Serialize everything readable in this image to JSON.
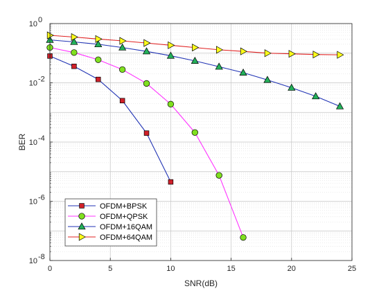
{
  "chart_data": {
    "type": "line",
    "title": "",
    "xlabel": "SNR(dB)",
    "ylabel": "BER",
    "xlim": [
      0,
      25
    ],
    "ylim": [
      1e-08,
      1
    ],
    "yscale": "log",
    "grid": true,
    "minor_grid": true,
    "legend_position": "bottom-left",
    "x_ticks": [
      0,
      5,
      10,
      15,
      20,
      25
    ],
    "x_tick_labels": [
      "0",
      "5",
      "10",
      "15",
      "20",
      "25"
    ],
    "y_ticks": [
      1e-08,
      1e-06,
      0.0001,
      0.01,
      1
    ],
    "y_tick_labels": [
      {
        "base": "10",
        "exp": "-8"
      },
      {
        "base": "10",
        "exp": "-6"
      },
      {
        "base": "10",
        "exp": "-4"
      },
      {
        "base": "10",
        "exp": "-2"
      },
      {
        "base": "10",
        "exp": "0"
      }
    ],
    "series": [
      {
        "name": "OFDM+BPSK",
        "color": "#1f32b4",
        "marker": "square",
        "marker_color": "#d0202a",
        "x": [
          0,
          2,
          4,
          6,
          8,
          10
        ],
        "y": [
          0.08,
          0.036,
          0.013,
          0.0025,
          0.0002,
          4.5e-06
        ]
      },
      {
        "name": "OFDM+QPSK",
        "color": "#ff33ff",
        "marker": "circle",
        "marker_color": "#80e020",
        "x": [
          0,
          2,
          4,
          6,
          8,
          10,
          12,
          14,
          16
        ],
        "y": [
          0.155,
          0.105,
          0.06,
          0.028,
          0.0095,
          0.0019,
          0.00021,
          7.5e-06,
          6e-08
        ]
      },
      {
        "name": "OFDM+16QAM",
        "color": "#1f32b4",
        "marker": "triangle",
        "marker_color": "#23b05a",
        "x": [
          0,
          2,
          4,
          6,
          8,
          10,
          12,
          14,
          16,
          18,
          20,
          22,
          24
        ],
        "y": [
          0.28,
          0.24,
          0.2,
          0.155,
          0.115,
          0.082,
          0.055,
          0.035,
          0.022,
          0.0125,
          0.0068,
          0.0035,
          0.0016
        ]
      },
      {
        "name": "OFDM+64QAM",
        "color": "#e02020",
        "marker": "triangle-right",
        "marker_color": "#ffff1a",
        "x": [
          0,
          2,
          4,
          6,
          8,
          10,
          12,
          14,
          16,
          18,
          20,
          22,
          24
        ],
        "y": [
          0.4,
          0.35,
          0.3,
          0.26,
          0.22,
          0.185,
          0.155,
          0.13,
          0.115,
          0.1,
          0.095,
          0.09,
          0.088
        ]
      }
    ]
  }
}
